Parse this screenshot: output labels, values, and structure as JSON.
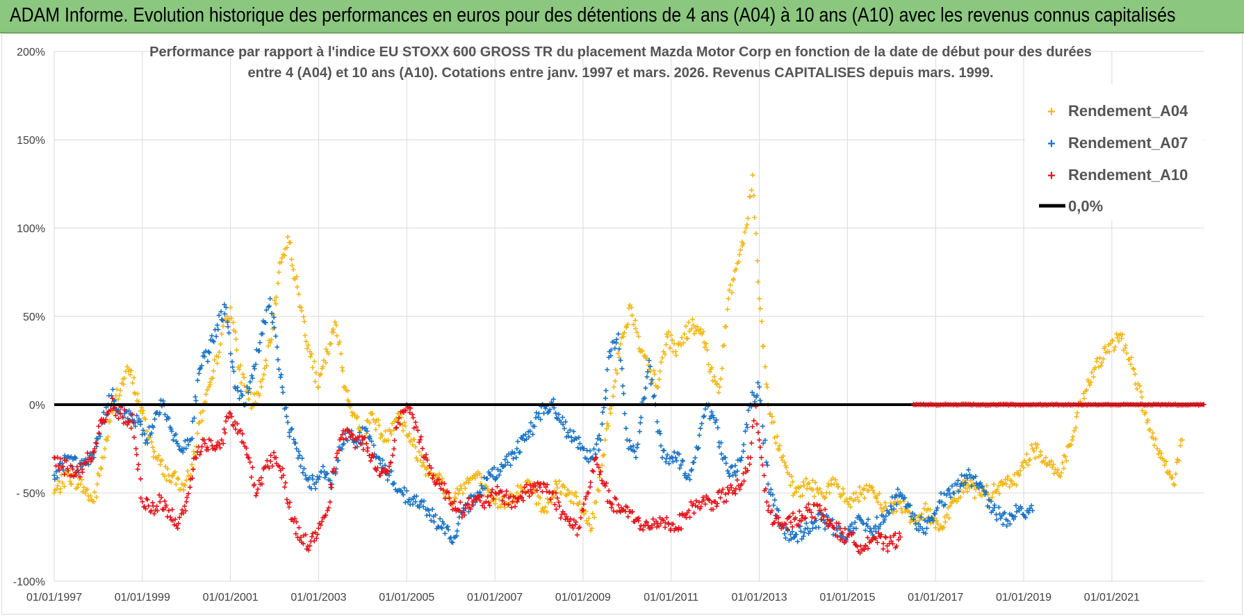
{
  "header": {
    "title": "ADAM Informe. Evolution historique des performances en euros pour des détentions de 4 ans (A04) à 10 ans (A10) avec les revenus connus capitalisés"
  },
  "colors": {
    "A04": "#f2b818",
    "A07": "#1a73c4",
    "A10": "#e3151b",
    "zero": "#000000",
    "grid": "#d9d9d9",
    "header_bg": "#8cc780"
  },
  "chart_data": {
    "type": "scatter",
    "title_lines": [
      "Performance par rapport à l'indice EU STOXX 600 GROSS TR  du placement Mazda Motor Corp en fonction de la date de début pour des durées",
      "entre 4 (A04) et 10 ans (A10).  Cotations entre janv. 1997 et mars. 2026.  Revenus CAPITALISES depuis mars. 1999."
    ],
    "xlabel": "",
    "ylabel": "",
    "xlim": [
      1997.0,
      2023.1
    ],
    "ylim": [
      -100,
      200
    ],
    "x_tick_values": [
      1997,
      1999,
      2001,
      2003,
      2005,
      2007,
      2009,
      2011,
      2013,
      2015,
      2017,
      2019,
      2021
    ],
    "x_tick_labels": [
      "01/01/1997",
      "01/01/1999",
      "01/01/2001",
      "01/01/2003",
      "01/01/2005",
      "01/01/2007",
      "01/01/2009",
      "01/01/2011",
      "01/01/2013",
      "01/01/2015",
      "01/01/2017",
      "01/01/2019",
      "01/01/2021"
    ],
    "y_tick_values": [
      200,
      150,
      100,
      50,
      0,
      -50,
      -100
    ],
    "y_tick_labels": [
      "200%",
      "150%",
      "100%",
      "50%",
      "0%",
      "- 50%",
      "-100%"
    ],
    "legend": {
      "position": "top-right",
      "entries": [
        "Rendement_A04",
        "Rendement_A07",
        "Rendement_A10",
        "0,0%"
      ]
    },
    "series": [
      {
        "name": "Rendement_A04",
        "marker": "+",
        "x": [
          1997.0,
          1997.3,
          1997.6,
          1997.9,
          1998.15,
          1998.4,
          1998.7,
          1999.0,
          1999.3,
          1999.6,
          1999.9,
          2000.1,
          2000.3,
          2000.6,
          2000.8,
          2001.0,
          2001.2,
          2001.5,
          2001.7,
          2001.9,
          2002.1,
          2002.3,
          2002.6,
          2002.8,
          2003.0,
          2003.2,
          2003.4,
          2003.6,
          2003.8,
          2004.0,
          2004.2,
          2004.5,
          2004.8,
          2005.1,
          2005.4,
          2005.7,
          2006.0,
          2006.3,
          2006.6,
          2006.9,
          2007.2,
          2007.5,
          2007.8,
          2008.1,
          2008.4,
          2008.7,
          2009.0,
          2009.2,
          2009.5,
          2009.7,
          2009.9,
          2010.1,
          2010.3,
          2010.5,
          2010.7,
          2010.9,
          2011.1,
          2011.3,
          2011.5,
          2011.7,
          2011.9,
          2012.1,
          2012.3,
          2012.5,
          2012.7,
          2012.85,
          2013.0,
          2013.2,
          2013.5,
          2013.8,
          2014.1,
          2014.4,
          2014.7,
          2015.0,
          2015.3,
          2015.6,
          2015.9,
          2016.2,
          2016.5,
          2016.8,
          2017.1,
          2017.4,
          2017.7,
          2018.0,
          2018.3,
          2018.6,
          2018.9,
          2019.2,
          2019.5,
          2019.8,
          2020.1,
          2020.3,
          2020.6,
          2020.9,
          2021.2,
          2021.5,
          2021.8,
          2022.1,
          2022.4,
          2022.6
        ],
        "y": [
          -50,
          -40,
          -45,
          -55,
          -25,
          5,
          20,
          -5,
          -30,
          -40,
          -45,
          -40,
          -10,
          15,
          40,
          55,
          20,
          0,
          10,
          35,
          75,
          95,
          55,
          30,
          10,
          30,
          45,
          10,
          -5,
          -20,
          -5,
          -20,
          -5,
          -20,
          -35,
          -40,
          -55,
          -45,
          -40,
          -55,
          -55,
          -50,
          -45,
          -60,
          -45,
          -50,
          -60,
          -70,
          -20,
          10,
          40,
          55,
          30,
          20,
          10,
          40,
          30,
          40,
          45,
          40,
          20,
          10,
          60,
          80,
          100,
          130,
          60,
          0,
          -30,
          -50,
          -45,
          -50,
          -45,
          -55,
          -50,
          -50,
          -60,
          -55,
          -65,
          -60,
          -70,
          -55,
          -45,
          -50,
          -50,
          -45,
          -40,
          -25,
          -30,
          -40,
          -20,
          0,
          20,
          30,
          40,
          20,
          -10,
          -30,
          -45,
          -20
        ]
      },
      {
        "name": "Rendement_A07",
        "marker": "+",
        "x": [
          1997.0,
          1997.3,
          1997.6,
          1997.9,
          1998.1,
          1998.3,
          1998.6,
          1998.9,
          1999.1,
          1999.3,
          1999.5,
          1999.7,
          1999.9,
          2000.1,
          2000.3,
          2000.5,
          2000.7,
          2000.9,
          2001.1,
          2001.3,
          2001.5,
          2001.7,
          2001.9,
          2002.1,
          2002.3,
          2002.5,
          2002.7,
          2002.9,
          2003.1,
          2003.3,
          2003.5,
          2003.7,
          2003.9,
          2004.1,
          2004.3,
          2004.6,
          2004.9,
          2005.2,
          2005.5,
          2005.8,
          2006.1,
          2006.3,
          2006.6,
          2006.9,
          2007.2,
          2007.5,
          2007.8,
          2008.0,
          2008.3,
          2008.5,
          2008.8,
          2009.0,
          2009.2,
          2009.4,
          2009.6,
          2009.8,
          2010.0,
          2010.2,
          2010.5,
          2010.8,
          2011.1,
          2011.4,
          2011.6,
          2011.8,
          2012.0,
          2012.2,
          2012.4,
          2012.6,
          2012.8,
          2013.0,
          2013.2,
          2013.5,
          2013.8,
          2014.1,
          2014.4,
          2014.7,
          2015.0,
          2015.3,
          2015.6,
          2015.9,
          2016.2,
          2016.5,
          2016.8,
          2017.1,
          2017.4,
          2017.7,
          2018.0,
          2018.3,
          2018.6,
          2018.9,
          2019.2
        ],
        "y": [
          -40,
          -30,
          -35,
          -30,
          -10,
          5,
          -5,
          -10,
          -20,
          -5,
          0,
          -20,
          -25,
          -20,
          20,
          30,
          45,
          55,
          10,
          0,
          15,
          40,
          60,
          20,
          -10,
          -25,
          -40,
          -45,
          -35,
          -45,
          -25,
          -15,
          -20,
          -15,
          -30,
          -40,
          -50,
          -55,
          -60,
          -70,
          -75,
          -60,
          -50,
          -40,
          -35,
          -25,
          -15,
          -5,
          0,
          -10,
          -20,
          -25,
          -30,
          -20,
          30,
          40,
          -20,
          -30,
          25,
          -30,
          -30,
          -40,
          -25,
          0,
          -10,
          -30,
          -40,
          -30,
          0,
          10,
          -45,
          -70,
          -75,
          -70,
          -65,
          -70,
          -75,
          -65,
          -70,
          -60,
          -50,
          -65,
          -70,
          -55,
          -50,
          -40,
          -45,
          -60,
          -65,
          -60,
          -60
        ]
      },
      {
        "name": "Rendement_A10",
        "marker": "+",
        "x": [
          1997.0,
          1997.2,
          1997.5,
          1997.8,
          1998.1,
          1998.3,
          1998.5,
          1998.8,
          1999.0,
          1999.2,
          1999.4,
          1999.6,
          1999.8,
          2000.0,
          2000.2,
          2000.4,
          2000.6,
          2000.8,
          2001.0,
          2001.2,
          2001.4,
          2001.6,
          2001.8,
          2002.0,
          2002.2,
          2002.4,
          2002.6,
          2002.8,
          2003.0,
          2003.2,
          2003.4,
          2003.6,
          2003.8,
          2004.0,
          2004.2,
          2004.4,
          2004.6,
          2004.8,
          2005.0,
          2005.2,
          2005.4,
          2005.6,
          2005.9,
          2006.2,
          2006.5,
          2006.8,
          2007.1,
          2007.4,
          2007.7,
          2008.0,
          2008.3,
          2008.6,
          2008.9,
          2009.1,
          2009.3,
          2009.6,
          2009.9,
          2010.2,
          2010.5,
          2010.8,
          2011.1,
          2011.4,
          2011.7,
          2012.0,
          2012.3,
          2012.6,
          2012.8,
          2012.9,
          2013.0,
          2013.2,
          2013.5,
          2013.8,
          2014.1,
          2014.4,
          2014.7,
          2015.0,
          2015.3,
          2015.6,
          2015.9,
          2016.2
        ],
        "y": [
          -30,
          -35,
          -40,
          -30,
          -10,
          0,
          -5,
          -10,
          -55,
          -60,
          -55,
          -60,
          -70,
          -55,
          -30,
          -20,
          -25,
          -20,
          -5,
          -15,
          -30,
          -50,
          -35,
          -30,
          -40,
          -65,
          -75,
          -80,
          -70,
          -60,
          -30,
          -15,
          -20,
          -20,
          -30,
          -40,
          -35,
          -10,
          0,
          -10,
          -30,
          -40,
          -50,
          -60,
          -55,
          -55,
          -50,
          -55,
          -50,
          -45,
          -50,
          -65,
          -70,
          -50,
          -30,
          -55,
          -60,
          -65,
          -70,
          -65,
          -70,
          -60,
          -55,
          -55,
          -50,
          -45,
          -30,
          0,
          -20,
          -60,
          -70,
          -65,
          -60,
          -60,
          -70,
          -75,
          -80,
          -75,
          -80,
          -75
        ]
      },
      {
        "name": "Rendement_A10 (flat)",
        "marker": "+",
        "x_range": [
          2016.5,
          2023.1
        ],
        "y": 0
      },
      {
        "name": "0,0%",
        "type": "line",
        "x": [
          1997.0,
          2023.1
        ],
        "y": [
          0,
          0
        ]
      }
    ]
  }
}
